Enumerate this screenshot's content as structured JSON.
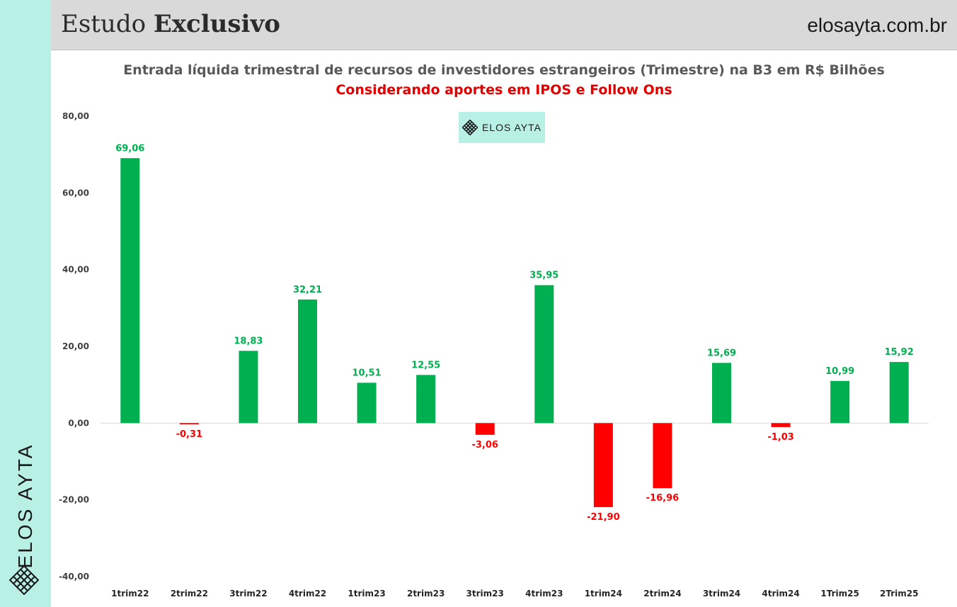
{
  "header": {
    "title_regular": "Estudo",
    "title_bold": "Exclusivo",
    "site": "elosayta.com.br"
  },
  "brand": {
    "side_text": "ELOS AYTA",
    "badge_text": "ELOS AYTA",
    "accent_color": "#b9f0e6",
    "logo_icon": "lattice-diamond-icon"
  },
  "colors": {
    "positive": "#00b050",
    "negative": "#ff0000",
    "subtitle": "#e00000"
  },
  "chart_data": {
    "type": "bar",
    "title": "Entrada líquida trimestral de recursos de investidores estrangeiros (Trimestre) na B3 em R$ Bilhões",
    "subtitle": "Considerando aportes em IPOS e Follow Ons",
    "categories": [
      "1trim22",
      "2trim22",
      "3trim22",
      "4trim22",
      "1trim23",
      "2trim23",
      "3trim23",
      "4trim23",
      "1trim24",
      "2trim24",
      "3trim24",
      "4trim24",
      "1Trim25",
      "2Trim25"
    ],
    "values": [
      69.06,
      -0.31,
      18.83,
      32.21,
      10.51,
      12.55,
      -3.06,
      35.95,
      -21.9,
      -16.96,
      15.69,
      -1.03,
      10.99,
      15.92
    ],
    "value_labels": [
      "69,06",
      "-0,31",
      "18,83",
      "32,21",
      "10,51",
      "12,55",
      "-3,06",
      "35,95",
      "-21,90",
      "-16,96",
      "15,69",
      "-1,03",
      "10,99",
      "15,92"
    ],
    "ylim": [
      -40,
      80
    ],
    "yticks": [
      -40,
      -20,
      0,
      20,
      40,
      60,
      80
    ],
    "ytick_labels": [
      "-40,00",
      "-20,00",
      "0,00",
      "20,00",
      "40,00",
      "60,00",
      "80,00"
    ],
    "grid": false,
    "legend": "none"
  }
}
